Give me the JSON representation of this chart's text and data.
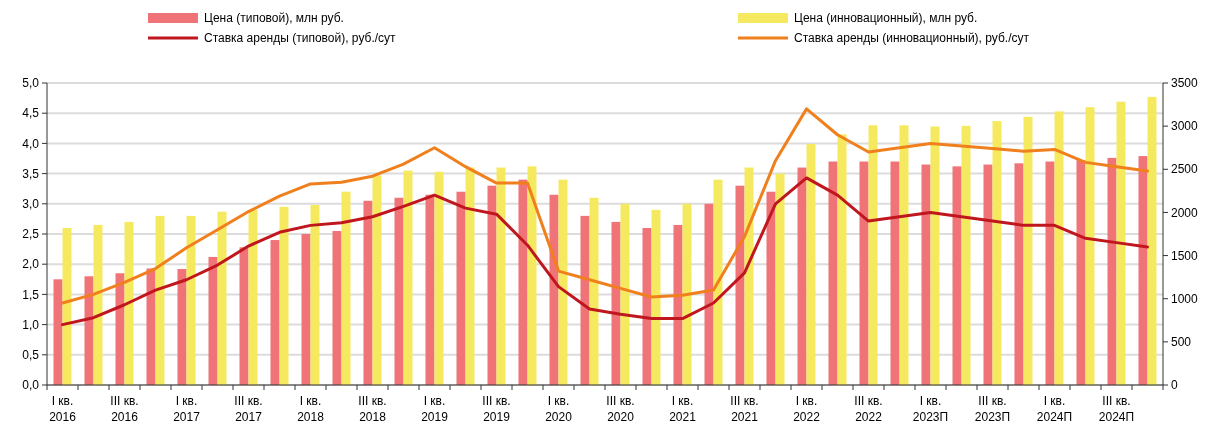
{
  "chart_data": {
    "type": "bar",
    "categories": [
      "I кв. 2016",
      null,
      "III кв. 2016",
      null,
      "I кв. 2017",
      null,
      "III кв. 2017",
      null,
      "I кв. 2018",
      null,
      "III кв. 2018",
      null,
      "I кв. 2019",
      null,
      "III кв. 2019",
      null,
      "I кв. 2020",
      null,
      "III кв. 2020",
      null,
      "I кв. 2021",
      null,
      "III кв. 2021",
      null,
      "I кв. 2022",
      null,
      "III кв. 2022",
      null,
      "I кв. 2023П",
      null,
      "III кв. 2023П",
      null,
      "I кв. 2024П",
      null,
      "III кв. 2024П",
      null
    ],
    "series": [
      {
        "name": "Цена (типовой), млн руб.",
        "color": "#f07378",
        "values": [
          1.75,
          1.8,
          1.85,
          1.93,
          1.92,
          2.12,
          2.28,
          2.4,
          2.5,
          2.55,
          3.05,
          3.1,
          3.15,
          3.2,
          3.3,
          3.4,
          3.15,
          2.8,
          2.7,
          2.6,
          2.65,
          3.0,
          3.3,
          3.2,
          3.6,
          3.7,
          3.7,
          3.7,
          3.65,
          3.62,
          3.65,
          3.67,
          3.7,
          3.72,
          3.76,
          3.79
        ]
      },
      {
        "name": "Цена (инновационный), млн руб.",
        "color": "#f5ea5f",
        "values": [
          2.6,
          2.65,
          2.7,
          2.8,
          2.8,
          2.87,
          2.9,
          2.95,
          2.98,
          3.2,
          3.47,
          3.55,
          3.53,
          3.6,
          3.6,
          3.62,
          3.4,
          3.1,
          3.0,
          2.9,
          3.0,
          3.4,
          3.6,
          3.5,
          3.99,
          4.15,
          4.3,
          4.3,
          4.28,
          4.29,
          4.37,
          4.44,
          4.53,
          4.6,
          4.69,
          4.77
        ]
      },
      {
        "name": "Ставка аренды (типовой), руб./сут",
        "type": "line",
        "axis": "y2",
        "color": "#c0161e",
        "values": [
          700,
          780,
          930,
          1100,
          1220,
          1390,
          1610,
          1770,
          1850,
          1880,
          1950,
          2070,
          2200,
          2050,
          1980,
          1620,
          1140,
          880,
          820,
          770,
          770,
          950,
          1300,
          2100,
          2400,
          2200,
          1900,
          1950,
          2000,
          1950,
          1900,
          1850,
          1850,
          1700,
          1650,
          1600
        ]
      },
      {
        "name": "Ставка аренды (инновационный), руб./сут",
        "type": "line",
        "axis": "y2",
        "color": "#f07f1e",
        "values": [
          950,
          1050,
          1190,
          1350,
          1590,
          1800,
          2010,
          2190,
          2330,
          2350,
          2420,
          2560,
          2750,
          2530,
          2340,
          2340,
          1320,
          1220,
          1120,
          1020,
          1040,
          1100,
          1720,
          2600,
          3200,
          2900,
          2700,
          2750,
          2800,
          2770,
          2740,
          2710,
          2730,
          2580,
          2530,
          2480
        ]
      }
    ],
    "ylim": [
      0,
      5
    ],
    "yticks": [
      {
        "value": 0,
        "label": "0,0"
      },
      {
        "value": 0.5,
        "label": "0,5"
      },
      {
        "value": 1,
        "label": "1,0"
      },
      {
        "value": 1.5,
        "label": "1,5"
      },
      {
        "value": 2,
        "label": "2,0"
      },
      {
        "value": 2.5,
        "label": "2,5"
      },
      {
        "value": 3,
        "label": "3,0"
      },
      {
        "value": 3.5,
        "label": "3,5"
      },
      {
        "value": 4,
        "label": "4,0"
      },
      {
        "value": 4.5,
        "label": "4,5"
      },
      {
        "value": 5,
        "label": "5,0"
      }
    ],
    "y2lim": [
      0,
      3500
    ],
    "y2ticks": [
      0,
      500,
      1000,
      1500,
      2000,
      2500,
      3000,
      3500
    ],
    "grid": "y",
    "legend": "top"
  }
}
